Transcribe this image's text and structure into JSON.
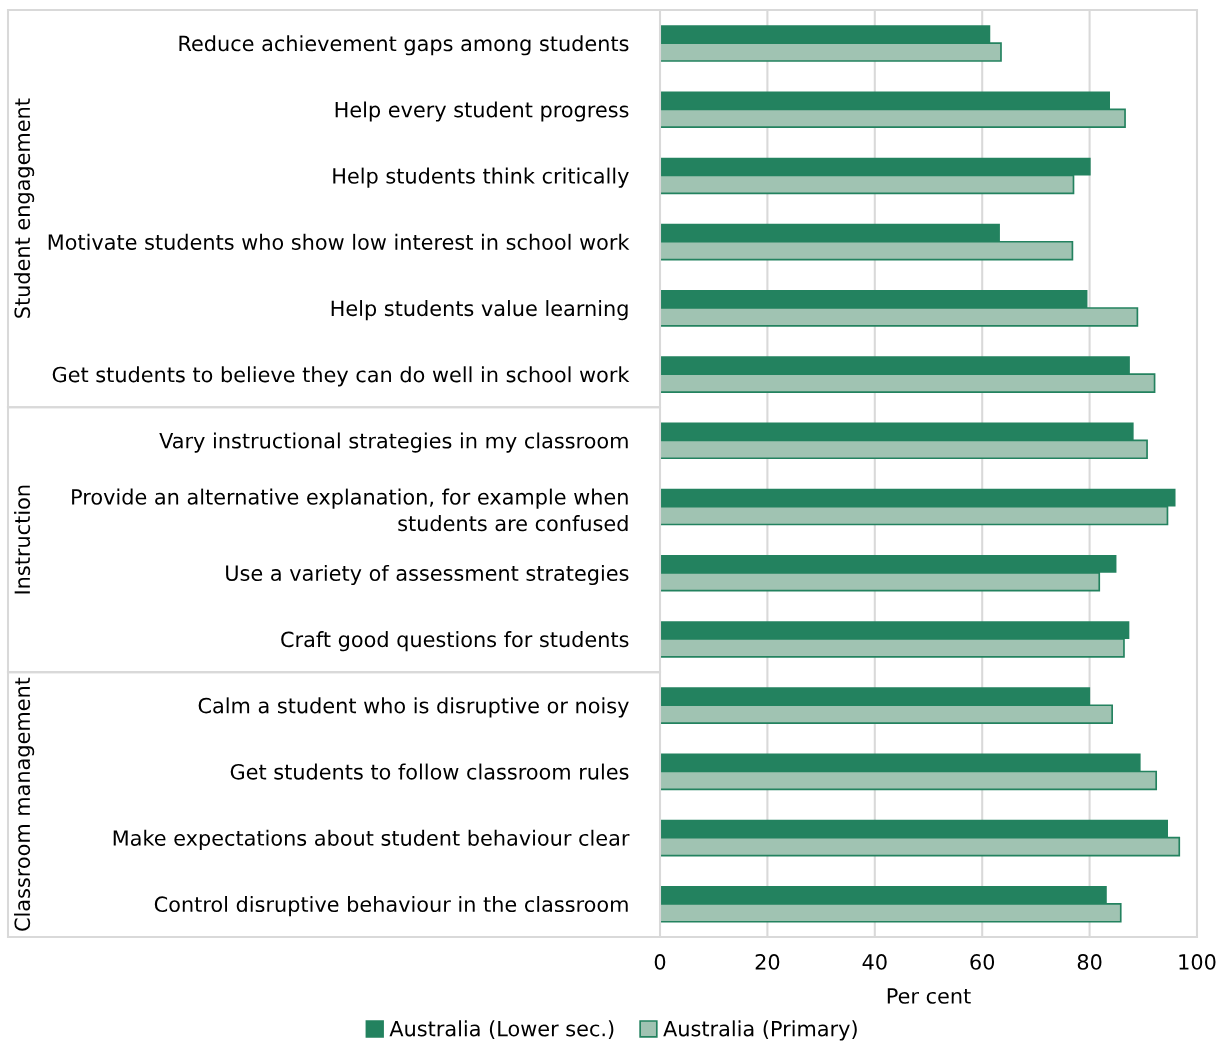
{
  "chart_data": {
    "type": "bar",
    "orientation": "horizontal",
    "xlabel": "Per cent",
    "categories": [
      "Reduce achievement gaps among students",
      "Help every student progress",
      "Help students think critically",
      "Motivate students who show low interest in school work",
      "Help students value learning",
      "Get students to believe they can do well in school work",
      "Vary instructional strategies in my classroom",
      "Provide an alternative explanation, for example when\nstudents are confused",
      "Use a variety of assessment strategies",
      "Craft good questions for students",
      "Calm a student who is disruptive or noisy",
      "Get students to follow classroom rules",
      "Make expectations about student behaviour clear",
      "Control disruptive behaviour in the classroom"
    ],
    "series": [
      {
        "name": "Australia (Lower sec.)",
        "color": "#23825f",
        "values": [
          61.5,
          83.8,
          80.2,
          63.3,
          79.6,
          87.5,
          88.2,
          96.0,
          85.0,
          87.4,
          80.1,
          89.5,
          94.6,
          83.2
        ]
      },
      {
        "name": "Australia (Primary)",
        "color": "#a0c3b2",
        "values": [
          63.5,
          86.6,
          77.0,
          76.8,
          88.9,
          92.1,
          90.7,
          94.5,
          81.8,
          86.4,
          84.2,
          92.4,
          96.7,
          85.8
        ]
      }
    ],
    "annotations": [
      "Student engagement",
      "Instruction",
      "Classroom management"
    ],
    "xlim": [
      0,
      100
    ],
    "xticks": [
      0,
      20,
      40,
      60,
      80,
      100
    ],
    "grid": "x",
    "legend": "bottom"
  }
}
